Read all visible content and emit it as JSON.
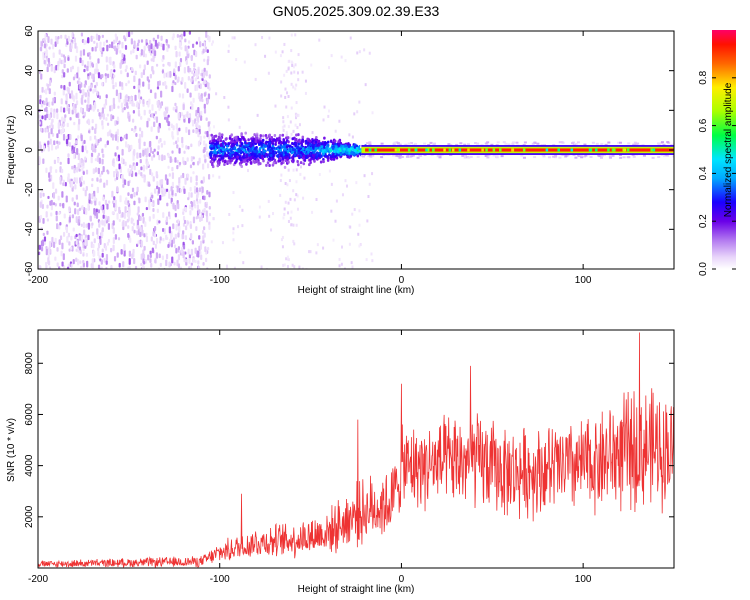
{
  "title": "GN05.2025.309.02.39.E33",
  "colors": {
    "snr_line": "#ee3333",
    "colormap": [
      "#ffffff",
      "#e8d4fa",
      "#c79bf2",
      "#9a4ee8",
      "#6a00e8",
      "#1a00ff",
      "#0088ff",
      "#00e5ff",
      "#00ff66",
      "#aaff00",
      "#ffee00",
      "#ff8800",
      "#ff2200",
      "#ff0066"
    ]
  },
  "chart_data": [
    {
      "type": "heatmap",
      "name": "spectrogram",
      "xlabel": "Height of straight line (km)",
      "ylabel": "Frequency (Hz)",
      "xlim": [
        -200,
        150
      ],
      "ylim": [
        -60,
        60
      ],
      "xticks": [
        -200,
        -100,
        0,
        100
      ],
      "yticks": [
        60,
        40,
        20,
        0,
        -20,
        -40,
        -60
      ],
      "grid": false,
      "description_regions": [
        {
          "x_range": [
            -200,
            -106
          ],
          "freq_range": [
            -60,
            60
          ],
          "amplitude": 0.1
        },
        {
          "x_range": [
            -106,
            -20
          ],
          "freq_range": [
            -10,
            10
          ],
          "amplitude": 0.4
        },
        {
          "x_range": [
            -20,
            150
          ],
          "freq_range": [
            -1,
            1
          ],
          "amplitude": 0.95
        }
      ]
    },
    {
      "type": "colorbar",
      "label": "Normalized spectral amplitude",
      "range": [
        0,
        1
      ],
      "ticks": [
        0.0,
        0.2,
        0.4,
        0.6,
        0.8
      ]
    },
    {
      "type": "line",
      "name": "snr",
      "xlabel": "Height of straight line (km)",
      "ylabel": "SNR (10 * v/v)",
      "xlim": [
        -200,
        150
      ],
      "ylim": [
        0,
        9300
      ],
      "xticks": [
        -200,
        -100,
        0,
        100
      ],
      "yticks": [
        2000,
        4000,
        6000,
        8000
      ],
      "grid": false,
      "envelope": [
        {
          "x": -200,
          "mean": 150,
          "spread": 150
        },
        {
          "x": -110,
          "mean": 250,
          "spread": 250
        },
        {
          "x": -100,
          "mean": 600,
          "spread": 450
        },
        {
          "x": -80,
          "mean": 1000,
          "spread": 700
        },
        {
          "x": -60,
          "mean": 1100,
          "spread": 800
        },
        {
          "x": -40,
          "mean": 1400,
          "spread": 1000
        },
        {
          "x": -25,
          "mean": 2100,
          "spread": 1400
        },
        {
          "x": -5,
          "mean": 2600,
          "spread": 1600
        },
        {
          "x": 0,
          "mean": 3900,
          "spread": 1800
        },
        {
          "x": 40,
          "mean": 4200,
          "spread": 2200
        },
        {
          "x": 60,
          "mean": 3700,
          "spread": 2000
        },
        {
          "x": 100,
          "mean": 4000,
          "spread": 2100
        },
        {
          "x": 130,
          "mean": 4700,
          "spread": 2800
        },
        {
          "x": 150,
          "mean": 4600,
          "spread": 2500
        }
      ],
      "peaks": [
        {
          "x": 131,
          "y": 9200
        },
        {
          "x": 38,
          "y": 7900
        },
        {
          "x": 0,
          "y": 7200
        },
        {
          "x": -24,
          "y": 5800
        },
        {
          "x": -88,
          "y": 2900
        }
      ]
    }
  ]
}
